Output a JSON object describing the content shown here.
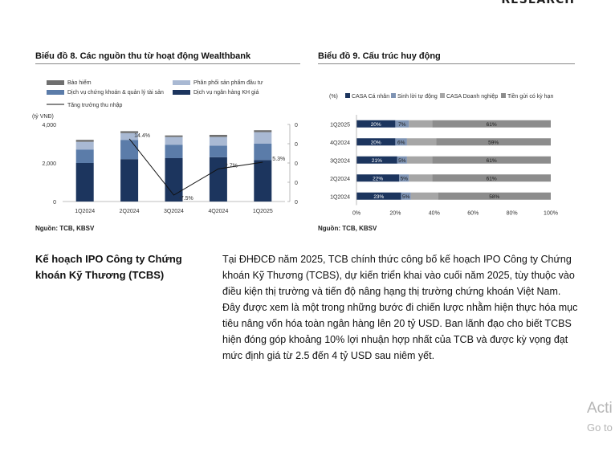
{
  "header": {
    "brand": "RESEARCH"
  },
  "chart8": {
    "title": "Biểu đồ 8. Các nguồn thu từ hoạt động Wealthbank",
    "source": "Nguồn: TCB, KBSV",
    "unit": "(tỷ VNĐ)",
    "colors": {
      "bao_hiem": "#6f6f6f",
      "phan_phoi": "#a9b9d3",
      "chung_khoan": "#5b7ca9",
      "ngan_hang": "#1c355e",
      "line": "#111111"
    },
    "chart_data": {
      "type": "bar",
      "stacked": true,
      "categories": [
        "1Q2024",
        "2Q2024",
        "3Q2024",
        "4Q2024",
        "1Q2025"
      ],
      "series": [
        {
          "name": "Dịch vụ ngân hàng KH giá",
          "values": [
            2000,
            2200,
            2250,
            2300,
            2150
          ]
        },
        {
          "name": "Dịch vụ chứng khoán & quản lý tài sản",
          "values": [
            700,
            1000,
            700,
            600,
            850
          ]
        },
        {
          "name": "Phân phối sản phẩm đầu tư",
          "values": [
            400,
            350,
            400,
            450,
            600
          ]
        },
        {
          "name": "Bảo hiểm",
          "values": [
            100,
            100,
            80,
            110,
            100
          ]
        }
      ],
      "line_series": {
        "name": "Tăng trưởng thu nhập",
        "values": [
          null,
          14.4,
          -7.5,
          2.7,
          5.3
        ],
        "labels": [
          "",
          "14.4%",
          "-7.5%",
          "2.7%",
          "5.3%"
        ]
      },
      "y_ticks": [
        "0",
        "2,000",
        "4,000"
      ],
      "ylim": [
        0,
        4000
      ],
      "y2_ticks": [
        "0",
        "0",
        "0",
        "0",
        "0"
      ],
      "legend": "top"
    }
  },
  "chart9": {
    "title": "Biểu đồ 9. Cấu trúc huy động",
    "colors": {
      "casa_cn": "#1c355e",
      "sinh_loi": "#7e93b3",
      "casa_dn": "#a6a6a6",
      "tien_gui": "#8c8c8c"
    },
    "chart_data": {
      "type": "bar",
      "orientation": "horizontal",
      "stacked": true,
      "legend_prefix": "(%)",
      "categories": [
        "1Q2025",
        "4Q2024",
        "3Q2024",
        "2Q2024",
        "1Q2024"
      ],
      "series": [
        {
          "name": "CASA Cá nhân",
          "values": [
            20,
            20,
            21,
            22,
            23
          ],
          "labels": [
            "20%",
            "20%",
            "21%",
            "22%",
            "23%"
          ]
        },
        {
          "name": "Sinh lời tự động",
          "values": [
            7,
            6,
            5,
            5,
            5
          ],
          "labels": [
            "7%",
            "6%",
            "5%",
            "5%",
            "5%"
          ]
        },
        {
          "name": "CASA Doanh nghiệp",
          "values": [
            12,
            15,
            13,
            12,
            14
          ],
          "labels": [
            "",
            "",
            "",
            "",
            ""
          ]
        },
        {
          "name": "Tiền gửi có kỳ hạn",
          "values": [
            61,
            59,
            61,
            61,
            58
          ],
          "labels": [
            "61%",
            "59%",
            "61%",
            "61%",
            "58%"
          ]
        }
      ],
      "x_ticks": [
        "0%",
        "20%",
        "40%",
        "60%",
        "80%",
        "100%"
      ],
      "xlim": [
        0,
        100
      ],
      "legend": "top"
    }
  },
  "section": {
    "title": "Kế hoạch IPO Công ty Chứng khoán Kỹ Thương (TCBS)",
    "body": "Tại ĐHĐCĐ năm 2025, TCB chính thức công bố kế hoạch IPO Công ty Chứng khoán Kỹ Thương (TCBS), dự kiến triển khai vào cuối năm 2025, tùy thuộc vào điều kiện thị trường và tiến độ nâng hạng thị trường chứng khoán Việt Nam. Đây được xem là một trong những bước đi chiến lược nhằm hiện thực hóa mục tiêu nâng vốn hóa toàn ngân hàng lên 20 tỷ USD. Ban lãnh đạo cho biết TCBS hiện đóng góp khoảng 10% lợi nhuận hợp nhất của TCB và được kỳ vọng đạt mức định giá từ 2.5 đến 4 tỷ USD sau niêm yết."
  },
  "watermark": {
    "line1": "Acti",
    "line2": "Go to"
  }
}
